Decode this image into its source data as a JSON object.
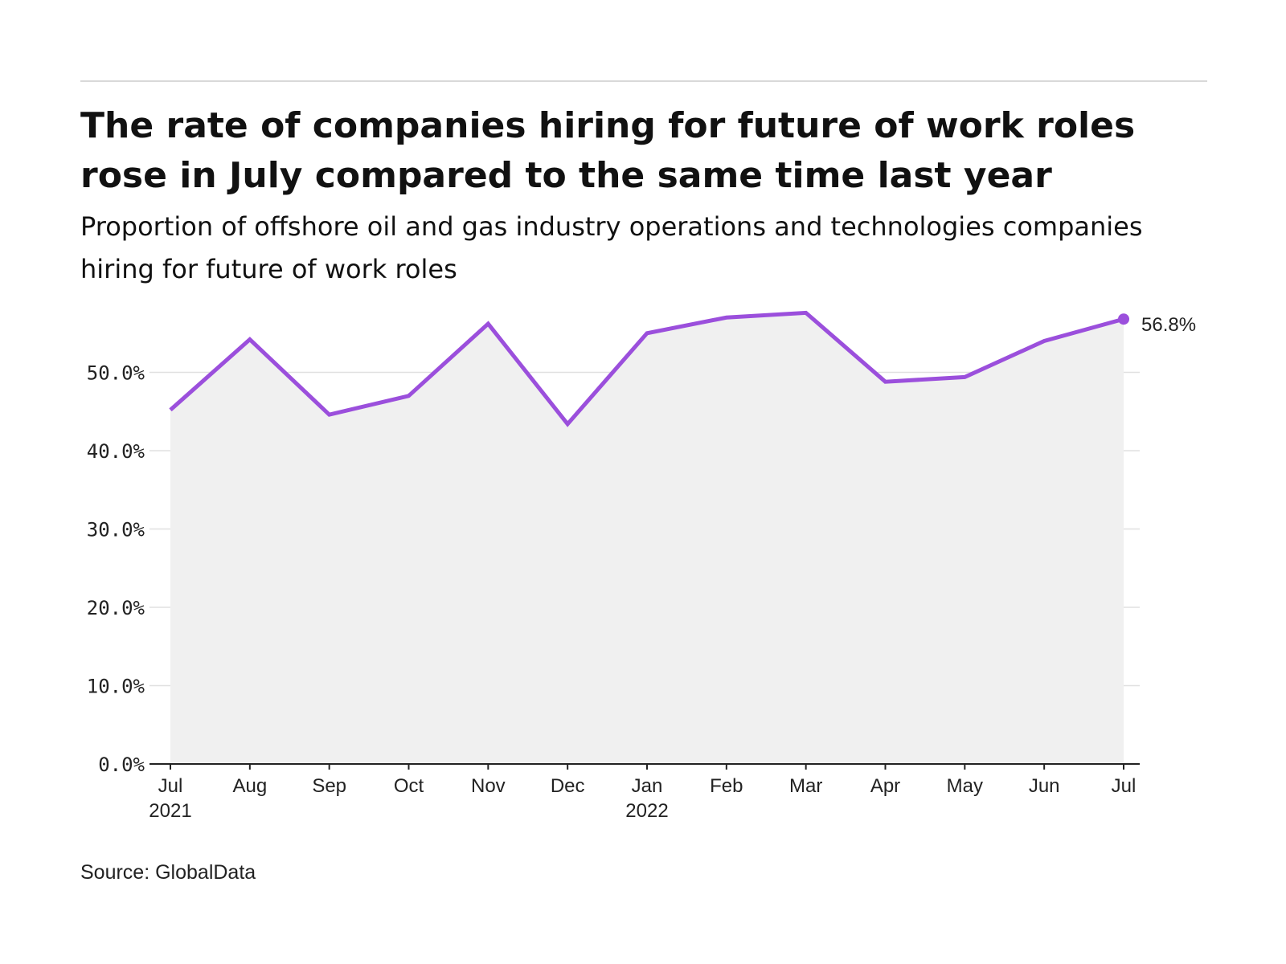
{
  "header": {
    "title": "The rate of companies hiring for future of work roles rose in July compared to the same time last year",
    "subtitle": "Proportion of offshore oil and gas industry operations and technologies companies hiring for future of work roles"
  },
  "footer": {
    "source": "Source: GlobalData"
  },
  "colors": {
    "line": "#9b4fdc",
    "area": "#f0f0f0",
    "grid": "#e0e0e0",
    "axis": "#222222"
  },
  "chart_data": {
    "type": "line",
    "x": [
      "Jul 2021",
      "Aug 2021",
      "Sep 2021",
      "Oct 2021",
      "Nov 2021",
      "Dec 2021",
      "Jan 2022",
      "Feb 2022",
      "Mar 2022",
      "Apr 2022",
      "May 2022",
      "Jun 2022",
      "Jul 2022"
    ],
    "x_tick_labels": [
      {
        "month": "Jul",
        "year": "2021"
      },
      {
        "month": "Aug",
        "year": ""
      },
      {
        "month": "Sep",
        "year": ""
      },
      {
        "month": "Oct",
        "year": ""
      },
      {
        "month": "Nov",
        "year": ""
      },
      {
        "month": "Dec",
        "year": ""
      },
      {
        "month": "Jan",
        "year": "2022"
      },
      {
        "month": "Feb",
        "year": ""
      },
      {
        "month": "Mar",
        "year": ""
      },
      {
        "month": "Apr",
        "year": ""
      },
      {
        "month": "May",
        "year": ""
      },
      {
        "month": "Jun",
        "year": ""
      },
      {
        "month": "Jul",
        "year": ""
      }
    ],
    "series": [
      {
        "values": [
          45.2,
          54.2,
          44.6,
          47.0,
          56.2,
          43.4,
          55.0,
          57.0,
          57.6,
          48.8,
          49.4,
          54.0,
          56.8
        ]
      }
    ],
    "y_ticks": [
      0,
      10,
      20,
      30,
      40,
      50
    ],
    "y_tick_labels": [
      "0.0%",
      "10.0%",
      "20.0%",
      "30.0%",
      "40.0%",
      "50.0%"
    ],
    "ylim": [
      0,
      60
    ],
    "grid": true,
    "area_fill": true,
    "end_label": "56.8%",
    "xlabel": "",
    "ylabel": ""
  }
}
